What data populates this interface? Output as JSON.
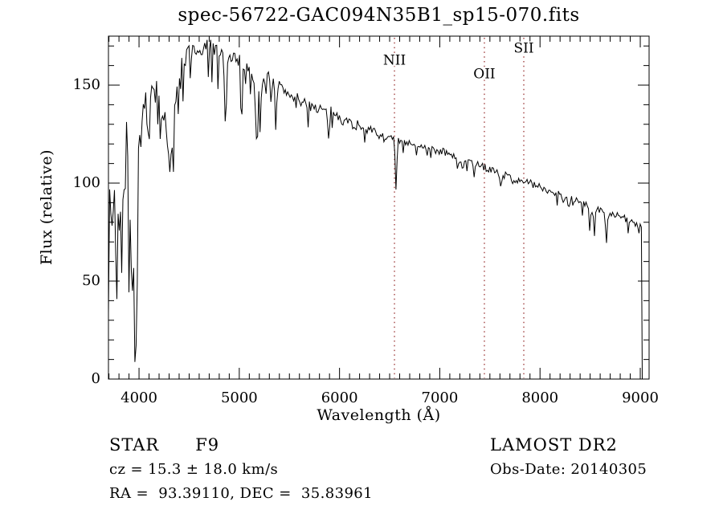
{
  "title": "spec-56722-GAC094N35B1_sp15-070.fits",
  "annotations": {
    "object_class": "STAR",
    "object_subclass": "F9",
    "survey": "LAMOST DR2",
    "cz_line": "cz = 15.3 ± 18.0 km/s",
    "obs_date": "Obs-Date: 20140305",
    "radec": "RA =  93.39110, DEC =  35.83961"
  },
  "chart_data": {
    "type": "line",
    "title": "spec-56722-GAC094N35B1_sp15-070.fits",
    "xlabel": "Wavelength (Å)",
    "ylabel": "Flux (relative)",
    "xlim": [
      3695,
      9088
    ],
    "ylim": [
      0,
      175
    ],
    "xticks": [
      4000,
      5000,
      6000,
      7000,
      8000,
      9000
    ],
    "yticks": [
      0,
      50,
      100,
      150
    ],
    "x_minor_step": 100,
    "y_minor_step": 10,
    "grid": false,
    "legend": false,
    "line_color": "#000000",
    "marker_line_color": "#993333",
    "spectral_line_markers": [
      {
        "label": "NII",
        "wavelength": 6548,
        "label_flux": 163
      },
      {
        "label": "OII",
        "wavelength": 7445,
        "label_flux": 156
      },
      {
        "label": "SII",
        "wavelength": 7838,
        "label_flux": 169
      }
    ],
    "spectrum": {
      "sample_step": 12,
      "noise_seed": 7,
      "cutoff_wavelength": 9020,
      "continuum": [
        [
          3695,
          100
        ],
        [
          3710,
          88
        ],
        [
          3740,
          86
        ],
        [
          3770,
          90
        ],
        [
          3800,
          92
        ],
        [
          3840,
          90
        ],
        [
          3880,
          96
        ],
        [
          3920,
          95
        ],
        [
          3955,
          92
        ],
        [
          3985,
          108
        ],
        [
          4020,
          126
        ],
        [
          4060,
          138
        ],
        [
          4100,
          143
        ],
        [
          4150,
          147
        ],
        [
          4200,
          143
        ],
        [
          4250,
          138
        ],
        [
          4300,
          128
        ],
        [
          4330,
          132
        ],
        [
          4370,
          148
        ],
        [
          4420,
          157
        ],
        [
          4470,
          163
        ],
        [
          4520,
          167
        ],
        [
          4570,
          168
        ],
        [
          4620,
          167
        ],
        [
          4670,
          169
        ],
        [
          4720,
          170
        ],
        [
          4770,
          168
        ],
        [
          4820,
          166
        ],
        [
          4870,
          163
        ],
        [
          4920,
          164
        ],
        [
          4970,
          162
        ],
        [
          5050,
          160
        ],
        [
          5150,
          155
        ],
        [
          5250,
          154
        ],
        [
          5350,
          151
        ],
        [
          5450,
          147
        ],
        [
          5550,
          144
        ],
        [
          5650,
          141
        ],
        [
          5750,
          139
        ],
        [
          5850,
          137
        ],
        [
          5950,
          136
        ],
        [
          6050,
          132
        ],
        [
          6150,
          130
        ],
        [
          6250,
          128
        ],
        [
          6350,
          126
        ],
        [
          6450,
          123
        ],
        [
          6550,
          122
        ],
        [
          6650,
          120
        ],
        [
          6750,
          119
        ],
        [
          6850,
          120
        ],
        [
          6950,
          117
        ],
        [
          7050,
          116
        ],
        [
          7150,
          113
        ],
        [
          7250,
          111
        ],
        [
          7350,
          110
        ],
        [
          7450,
          108
        ],
        [
          7550,
          106
        ],
        [
          7650,
          104
        ],
        [
          7750,
          102
        ],
        [
          7850,
          101
        ],
        [
          7950,
          99
        ],
        [
          8050,
          97
        ],
        [
          8150,
          95
        ],
        [
          8250,
          93
        ],
        [
          8350,
          91
        ],
        [
          8450,
          89
        ],
        [
          8550,
          87
        ],
        [
          8650,
          85
        ],
        [
          8750,
          84
        ],
        [
          8850,
          82
        ],
        [
          8950,
          79
        ],
        [
          9020,
          77
        ]
      ],
      "absorption_lines": [
        [
          3933,
          55,
          12
        ],
        [
          3970,
          48,
          10
        ],
        [
          4101,
          22,
          10
        ],
        [
          4227,
          12,
          8
        ],
        [
          4305,
          26,
          14
        ],
        [
          4340,
          28,
          9
        ],
        [
          4861,
          36,
          9
        ],
        [
          5175,
          36,
          12
        ],
        [
          5890,
          15,
          9
        ],
        [
          6563,
          25,
          8
        ],
        [
          6870,
          5,
          10
        ],
        [
          7190,
          4,
          12
        ],
        [
          7605,
          5,
          12
        ],
        [
          8230,
          5,
          10
        ],
        [
          8498,
          13,
          7
        ],
        [
          8542,
          16,
          7
        ],
        [
          8662,
          16,
          7
        ]
      ],
      "emission_spikes": [
        [
          3880,
          58,
          5
        ]
      ],
      "noise_regions": [
        [
          3695,
          3780,
          16,
          0.38,
          52
        ],
        [
          3780,
          3995,
          14,
          0.33,
          48
        ],
        [
          3995,
          4520,
          8,
          0.3,
          26
        ],
        [
          4520,
          5400,
          4.5,
          0.26,
          24
        ],
        [
          5400,
          6200,
          3,
          0.18,
          14
        ],
        [
          6200,
          7000,
          2.2,
          0.14,
          8
        ],
        [
          7000,
          9020,
          1.8,
          0.13,
          7
        ]
      ]
    }
  }
}
